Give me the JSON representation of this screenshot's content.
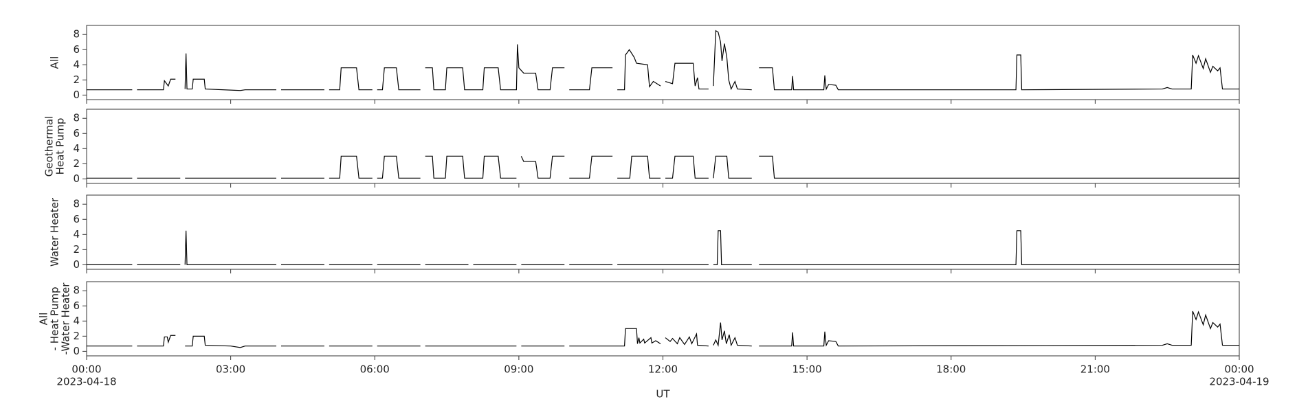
{
  "chart_data": [
    {
      "type": "line",
      "ylabel": [
        "All"
      ],
      "ylim": [
        -0.6,
        9.2
      ],
      "yticks": [
        0,
        2,
        4,
        6,
        8
      ],
      "xlim": [
        0,
        24
      ],
      "xticks": [
        0,
        3,
        6,
        9,
        12,
        15,
        18,
        21,
        24
      ],
      "color": "#000000",
      "x": [
        0,
        0.95,
        1.0,
        1.05,
        1.6,
        1.62,
        1.7,
        1.75,
        1.85,
        1.95,
        2.05,
        2.07,
        2.09,
        2.2,
        2.22,
        2.45,
        2.47,
        3.2,
        3.3,
        3.95,
        4.0,
        4.05,
        4.95,
        5.0,
        5.05,
        5.27,
        5.3,
        5.62,
        5.67,
        5.95,
        6.0,
        6.05,
        6.16,
        6.2,
        6.45,
        6.5,
        6.95,
        7.0,
        7.05,
        7.2,
        7.23,
        7.47,
        7.5,
        7.83,
        7.87,
        8.25,
        8.28,
        8.57,
        8.62,
        8.95,
        8.97,
        9.0,
        9.1,
        9.35,
        9.4,
        9.65,
        9.7,
        9.95,
        10.0,
        10.05,
        10.47,
        10.52,
        10.95,
        11.0,
        11.05,
        11.2,
        11.22,
        11.3,
        11.4,
        11.45,
        11.68,
        11.72,
        11.8,
        11.95,
        12.0,
        12.05,
        12.2,
        12.25,
        12.63,
        12.67,
        12.72,
        12.75,
        12.95,
        13.0,
        13.05,
        13.1,
        13.15,
        13.2,
        13.23,
        13.28,
        13.33,
        13.37,
        13.42,
        13.5,
        13.55,
        13.85,
        13.9,
        14.0,
        14.28,
        14.32,
        14.68,
        14.7,
        14.72,
        15.35,
        15.37,
        15.4,
        15.45,
        15.6,
        15.65,
        19.35,
        19.37,
        19.45,
        19.47,
        22.4,
        22.5,
        22.6,
        23.0,
        23.03,
        23.1,
        23.15,
        23.25,
        23.3,
        23.4,
        23.45,
        23.55,
        23.6,
        23.65,
        24
      ],
      "values": [
        0.7,
        0.7,
        null,
        0.7,
        0.7,
        1.9,
        1.2,
        2.1,
        2.1,
        null,
        0.8,
        5.5,
        0.8,
        0.8,
        2.1,
        2.1,
        0.8,
        0.6,
        0.7,
        0.7,
        null,
        0.7,
        0.7,
        null,
        0.7,
        0.7,
        3.6,
        3.6,
        0.7,
        0.7,
        null,
        0.7,
        0.7,
        3.6,
        3.6,
        0.7,
        0.7,
        null,
        3.6,
        3.6,
        0.7,
        0.7,
        3.6,
        3.6,
        0.7,
        0.7,
        3.6,
        3.6,
        0.7,
        0.7,
        6.7,
        3.6,
        2.9,
        2.9,
        0.7,
        0.7,
        3.6,
        3.6,
        null,
        0.7,
        0.7,
        3.6,
        3.6,
        null,
        0.7,
        0.7,
        5.3,
        6.0,
        5.0,
        4.2,
        4.0,
        1.1,
        1.8,
        1.2,
        null,
        1.8,
        1.5,
        4.2,
        4.2,
        1.2,
        2.3,
        0.8,
        0.8,
        null,
        1.2,
        8.5,
        8.3,
        7.0,
        4.5,
        6.8,
        5.0,
        2.0,
        0.8,
        1.8,
        0.8,
        0.7,
        null,
        3.6,
        3.6,
        0.7,
        0.7,
        2.5,
        0.7,
        0.7,
        2.6,
        0.8,
        1.4,
        1.3,
        0.7,
        0.7,
        5.3,
        5.3,
        0.7,
        0.8,
        1.0,
        0.8,
        0.8,
        5.3,
        4.2,
        5.2,
        3.5,
        4.8,
        3.0,
        3.8,
        3.2,
        3.6,
        0.8,
        0.8
      ]
    },
    {
      "type": "line",
      "ylabel": [
        "Geothermal",
        "Heat Pump"
      ],
      "ylim": [
        -0.6,
        9.2
      ],
      "yticks": [
        0,
        2,
        4,
        6,
        8
      ],
      "xlim": [
        0,
        24
      ],
      "xticks": [
        0,
        3,
        6,
        9,
        12,
        15,
        18,
        21,
        24
      ],
      "color": "#000000",
      "x": [
        0,
        0.95,
        1.0,
        1.05,
        1.95,
        2.0,
        2.05,
        3.95,
        4.0,
        4.05,
        4.95,
        5.0,
        5.05,
        5.27,
        5.3,
        5.62,
        5.67,
        5.95,
        6.0,
        6.05,
        6.16,
        6.2,
        6.45,
        6.5,
        6.95,
        7.0,
        7.05,
        7.2,
        7.23,
        7.47,
        7.5,
        7.83,
        7.87,
        8.25,
        8.28,
        8.57,
        8.62,
        8.95,
        9.0,
        9.05,
        9.1,
        9.35,
        9.4,
        9.65,
        9.7,
        9.95,
        10.0,
        10.05,
        10.47,
        10.52,
        10.95,
        11.0,
        11.05,
        11.31,
        11.35,
        11.68,
        11.72,
        11.95,
        12.0,
        12.05,
        12.2,
        12.25,
        12.63,
        12.67,
        12.95,
        13.0,
        13.05,
        13.1,
        13.33,
        13.37,
        13.85,
        13.9,
        14.0,
        14.28,
        14.32,
        24
      ],
      "values": [
        0.1,
        0.1,
        null,
        0.1,
        0.1,
        null,
        0.1,
        0.1,
        null,
        0.1,
        0.1,
        null,
        0.1,
        0.1,
        3.0,
        3.0,
        0.1,
        0.1,
        null,
        0.1,
        0.1,
        3.0,
        3.0,
        0.1,
        0.1,
        null,
        3.0,
        3.0,
        0.1,
        0.1,
        3.0,
        3.0,
        0.1,
        0.1,
        3.0,
        3.0,
        0.1,
        0.1,
        null,
        3.0,
        2.3,
        2.3,
        0.1,
        0.1,
        3.0,
        3.0,
        null,
        0.1,
        0.1,
        3.0,
        3.0,
        null,
        0.1,
        0.1,
        3.0,
        3.0,
        0.1,
        0.1,
        null,
        0.1,
        0.1,
        3.0,
        3.0,
        0.1,
        0.1,
        null,
        0.1,
        3.0,
        3.0,
        0.1,
        0.1,
        null,
        3.0,
        3.0,
        0.1,
        0.1
      ]
    },
    {
      "type": "line",
      "ylabel": [
        "Water Heater"
      ],
      "ylim": [
        -0.6,
        9.2
      ],
      "yticks": [
        0,
        2,
        4,
        6,
        8
      ],
      "xlim": [
        0,
        24
      ],
      "xticks": [
        0,
        3,
        6,
        9,
        12,
        15,
        18,
        21,
        24
      ],
      "color": "#000000",
      "x": [
        0,
        0.95,
        1.0,
        1.05,
        1.95,
        2.0,
        2.05,
        2.07,
        2.09,
        3.95,
        4.0,
        4.05,
        4.95,
        5.0,
        5.05,
        5.95,
        6.0,
        6.05,
        6.95,
        7.0,
        7.05,
        7.95,
        8.0,
        8.05,
        8.95,
        9.0,
        9.05,
        9.95,
        10.0,
        10.05,
        10.95,
        11.0,
        11.05,
        12.95,
        13.0,
        13.05,
        13.13,
        13.15,
        13.2,
        13.22,
        13.85,
        13.9,
        14.0,
        19.35,
        19.37,
        19.45,
        19.47,
        24
      ],
      "values": [
        0,
        0,
        null,
        0,
        0,
        null,
        0,
        4.5,
        0,
        0,
        null,
        0,
        0,
        null,
        0,
        0,
        null,
        0,
        0,
        null,
        0,
        0,
        null,
        0,
        0,
        null,
        0,
        0,
        null,
        0,
        0,
        null,
        0,
        0,
        null,
        0,
        0,
        4.5,
        4.5,
        0,
        0,
        null,
        0,
        0,
        4.5,
        4.5,
        0,
        0
      ]
    },
    {
      "type": "line",
      "ylabel": [
        "All",
        "- Heat Pump",
        "-Water Heater"
      ],
      "ylim": [
        -0.6,
        9.2
      ],
      "yticks": [
        0,
        2,
        4,
        6,
        8
      ],
      "xlim": [
        0,
        24
      ],
      "color": "#000000",
      "xticks": [
        {
          "value": 0,
          "label": "00:00"
        },
        {
          "value": 3,
          "label": "03:00"
        },
        {
          "value": 6,
          "label": "06:00"
        },
        {
          "value": 9,
          "label": "09:00"
        },
        {
          "value": 12,
          "label": "12:00"
        },
        {
          "value": 15,
          "label": "15:00"
        },
        {
          "value": 18,
          "label": "18:00"
        },
        {
          "value": 21,
          "label": "21:00"
        },
        {
          "value": 24,
          "label": "00:00"
        }
      ],
      "x_start_date": "2023-04-18",
      "x_end_date": "2023-04-19",
      "xlabel": "UT",
      "x": [
        0,
        0.95,
        1.0,
        1.05,
        1.6,
        1.62,
        1.68,
        1.7,
        1.75,
        1.85,
        1.95,
        2.05,
        2.2,
        2.22,
        2.45,
        2.47,
        3.0,
        3.2,
        3.3,
        3.95,
        4.0,
        4.05,
        4.95,
        5.0,
        5.05,
        5.95,
        6.0,
        6.05,
        6.95,
        7.0,
        7.05,
        8.95,
        9.0,
        9.05,
        9.95,
        10.0,
        10.05,
        11.2,
        11.22,
        11.45,
        11.47,
        11.5,
        11.52,
        11.6,
        11.62,
        11.75,
        11.77,
        11.85,
        11.95,
        12.0,
        12.05,
        12.15,
        12.2,
        12.3,
        12.35,
        12.45,
        12.55,
        12.6,
        12.7,
        12.72,
        12.95,
        13.0,
        13.05,
        13.1,
        13.15,
        13.2,
        13.23,
        13.28,
        13.32,
        13.38,
        13.42,
        13.5,
        13.55,
        13.85,
        13.9,
        14.0,
        14.68,
        14.7,
        14.72,
        15.35,
        15.37,
        15.4,
        15.45,
        15.6,
        15.65,
        22.4,
        22.5,
        22.6,
        23.0,
        23.03,
        23.1,
        23.15,
        23.25,
        23.3,
        23.4,
        23.45,
        23.55,
        23.6,
        23.65,
        24
      ],
      "values": [
        0.7,
        0.7,
        null,
        0.7,
        0.7,
        1.9,
        1.9,
        1.2,
        2.1,
        2.1,
        null,
        0.7,
        0.7,
        2.0,
        2.0,
        0.8,
        0.7,
        0.5,
        0.7,
        0.7,
        null,
        0.7,
        0.7,
        null,
        0.7,
        0.7,
        null,
        0.7,
        0.7,
        null,
        0.7,
        0.7,
        null,
        0.7,
        0.7,
        null,
        0.7,
        0.7,
        3.0,
        3.0,
        1.0,
        1.8,
        1.1,
        1.6,
        1.1,
        1.8,
        1.1,
        1.4,
        1.0,
        null,
        1.8,
        1.3,
        1.7,
        1.0,
        1.8,
        0.9,
        1.9,
        1.0,
        2.3,
        0.8,
        0.7,
        null,
        0.8,
        1.5,
        0.8,
        3.8,
        1.5,
        2.7,
        1.0,
        2.2,
        0.8,
        1.8,
        0.8,
        0.7,
        null,
        0.7,
        0.7,
        2.5,
        0.7,
        0.7,
        2.6,
        0.8,
        1.4,
        1.3,
        0.7,
        0.8,
        1.0,
        0.8,
        0.8,
        5.3,
        4.2,
        5.2,
        3.5,
        4.8,
        3.0,
        3.8,
        3.2,
        3.6,
        0.8,
        0.8
      ]
    }
  ]
}
